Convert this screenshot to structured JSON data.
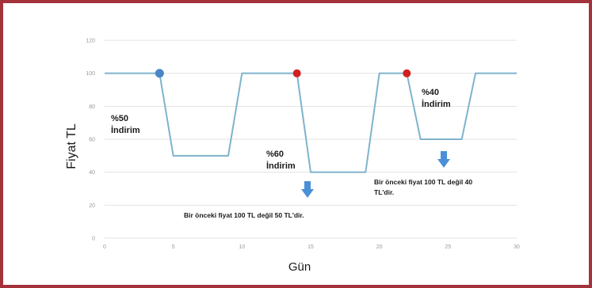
{
  "chart_data": {
    "type": "line",
    "xlabel": "Gün",
    "ylabel": "Fiyat TL",
    "xlim": [
      0,
      30
    ],
    "ylim": [
      0,
      120
    ],
    "x_ticks": [
      0,
      5,
      10,
      15,
      20,
      25,
      30
    ],
    "y_ticks": [
      0,
      20,
      40,
      60,
      80,
      100,
      120
    ],
    "grid": true,
    "line_color": "#7fb3cc",
    "series": [
      {
        "x": [
          0,
          4,
          5,
          9,
          10,
          14,
          15,
          19,
          20,
          22,
          23,
          26,
          27,
          30
        ],
        "y": [
          100,
          100,
          50,
          50,
          100,
          100,
          40,
          40,
          100,
          100,
          60,
          60,
          100,
          100
        ]
      }
    ],
    "markers": [
      {
        "x": 4,
        "y": 100,
        "color": "#4a86c6"
      },
      {
        "x": 14,
        "y": 100,
        "color": "#d21f1f"
      },
      {
        "x": 22,
        "y": 100,
        "color": "#d21f1f"
      }
    ],
    "annotations": [
      {
        "lines": [
          "%50",
          "İndirim"
        ]
      },
      {
        "lines": [
          "%60",
          "İndirim"
        ]
      },
      {
        "lines": [
          "%40",
          "İndirim"
        ]
      }
    ],
    "notes": [
      {
        "lines": [
          "Bir önceki fiyat 100 TL değil 50 TL'dir."
        ]
      },
      {
        "lines": [
          "Bir önceki fiyat 100 TL değil 40",
          "TL'dir."
        ]
      }
    ],
    "arrow_color": "#4a90d6"
  }
}
